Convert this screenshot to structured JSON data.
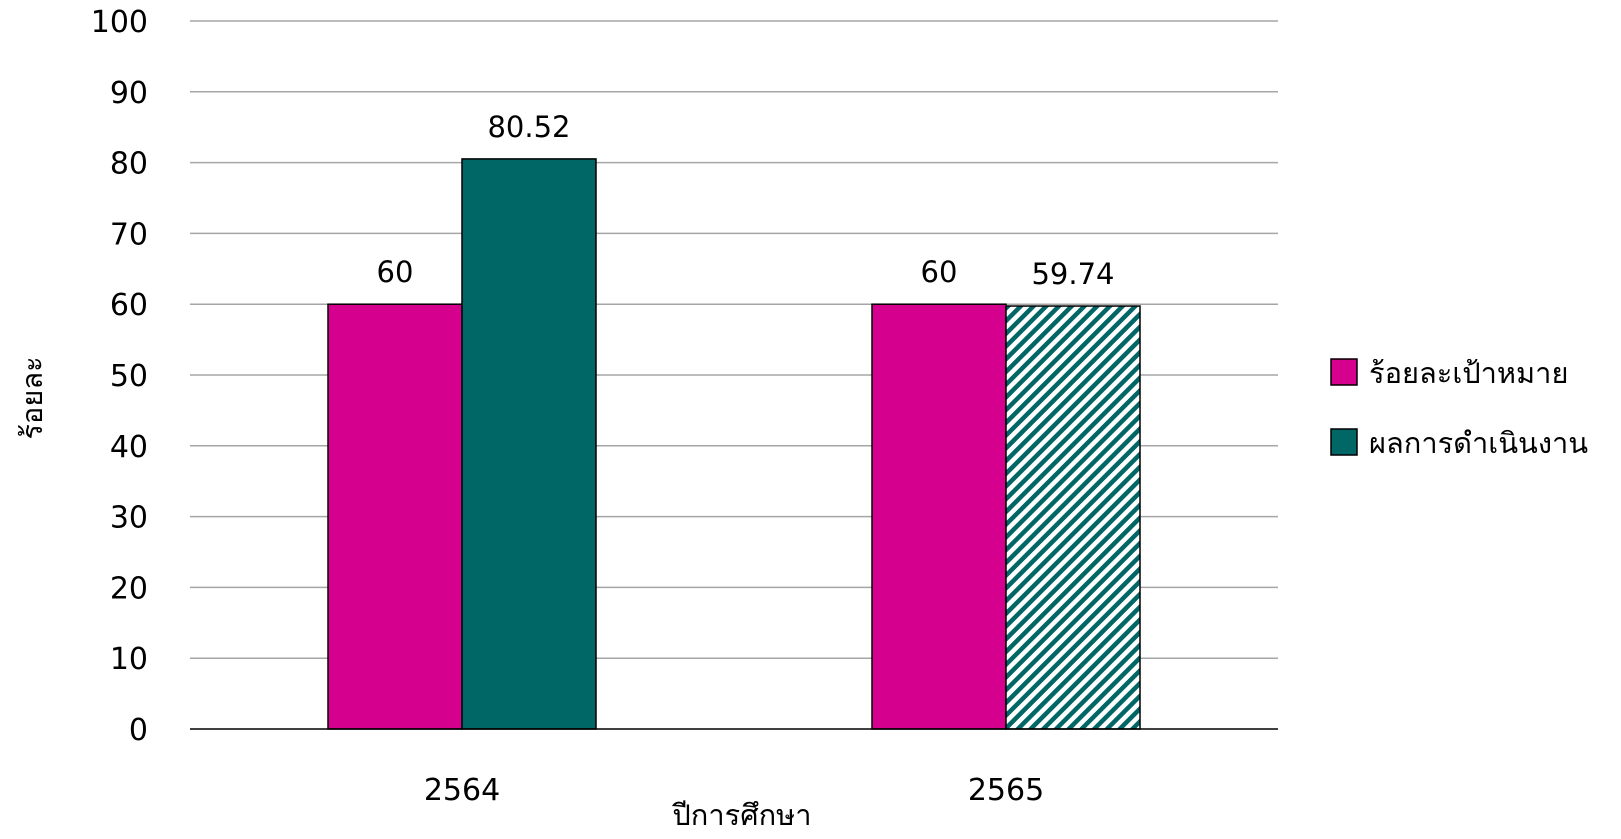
{
  "chart_data": {
    "type": "bar",
    "categories": [
      "2564",
      "2565"
    ],
    "series": [
      {
        "name": "ร้อยละเป้าหมาย",
        "values": [
          60,
          60
        ],
        "color": "#d6008f",
        "pattern": [
          "solid",
          "solid"
        ]
      },
      {
        "name": "ผลการดำเนินงาน",
        "values": [
          80.52,
          59.74
        ],
        "color": "#006766",
        "pattern": [
          "solid",
          "hatched"
        ]
      }
    ],
    "data_labels": [
      [
        "60",
        "60"
      ],
      [
        "80.52",
        "59.74"
      ]
    ],
    "xlabel": "ปีการศึกษา",
    "ylabel": "ร้อยละ",
    "ylim": [
      0,
      100
    ],
    "yticks": [
      0,
      10,
      20,
      30,
      40,
      50,
      60,
      70,
      80,
      90,
      100
    ],
    "grid": true,
    "legend_position": "right"
  }
}
